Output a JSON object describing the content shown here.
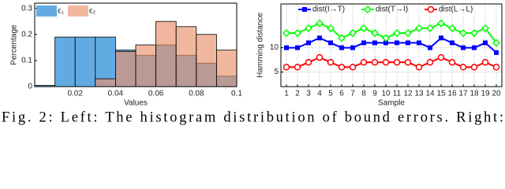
{
  "chart_data": [
    {
      "type": "histogram",
      "xlabel": "Values",
      "ylabel": "Percentage",
      "bins": [
        0,
        0.01,
        0.02,
        0.03,
        0.04,
        0.05,
        0.06,
        0.07,
        0.08,
        0.09,
        0.1
      ],
      "series": [
        {
          "name": "ϵ₁",
          "color": "#5aa7e0",
          "values": [
            0.005,
            0.19,
            0.19,
            0.19,
            0.14,
            0.12,
            0.16,
            0.12,
            0.09,
            0.04
          ]
        },
        {
          "name": "ϵ₂",
          "color": "#e8906a",
          "values": [
            0,
            0,
            0,
            0.03,
            0.135,
            0.16,
            0.25,
            0.23,
            0.2,
            0.14
          ]
        }
      ],
      "xlim": [
        0,
        0.1
      ],
      "ylim": [
        0,
        0.32
      ],
      "xticks": [
        0.02,
        0.04,
        0.06,
        0.08,
        0.1
      ],
      "yticks": [
        0,
        0.1,
        0.2,
        0.3
      ],
      "legend": "upper left"
    },
    {
      "type": "line",
      "xlabel": "Sample",
      "ylabel": "Hamming distance",
      "x": [
        1,
        2,
        3,
        4,
        5,
        6,
        7,
        8,
        9,
        10,
        11,
        12,
        13,
        14,
        15,
        16,
        17,
        18,
        19,
        20
      ],
      "series": [
        {
          "name": "dist(I→T)",
          "color": "#0000ff",
          "marker": "square",
          "values": [
            10,
            10,
            11,
            12,
            11,
            10,
            10,
            11,
            11,
            11,
            11,
            11,
            11,
            10,
            12,
            11,
            10,
            10,
            11,
            9
          ]
        },
        {
          "name": "dist(T→I)",
          "color": "#00ff00",
          "marker": "diamond",
          "values": [
            13,
            13,
            14,
            15,
            14,
            12,
            13,
            14,
            13,
            12,
            13,
            13,
            14,
            14,
            15,
            14,
            13,
            13,
            14,
            11
          ]
        },
        {
          "name": "dist(L→L)",
          "color": "#ff0000",
          "marker": "circle",
          "values": [
            6,
            6,
            7,
            8,
            7,
            6,
            6,
            7,
            7,
            7,
            7,
            7,
            6,
            7,
            8,
            7,
            6,
            6,
            7,
            6
          ]
        }
      ],
      "xlim": [
        0.5,
        20.5
      ],
      "ylim": [
        2,
        19
      ],
      "xticks": [
        1,
        2,
        3,
        4,
        5,
        6,
        7,
        8,
        9,
        10,
        11,
        12,
        13,
        14,
        15,
        16,
        17,
        18,
        19,
        20
      ],
      "yticks": [
        5,
        10
      ],
      "grid": true,
      "legend": "upper center"
    }
  ],
  "caption": "Fig. 2: Left: The histogram distribution of bound errors. Right:"
}
